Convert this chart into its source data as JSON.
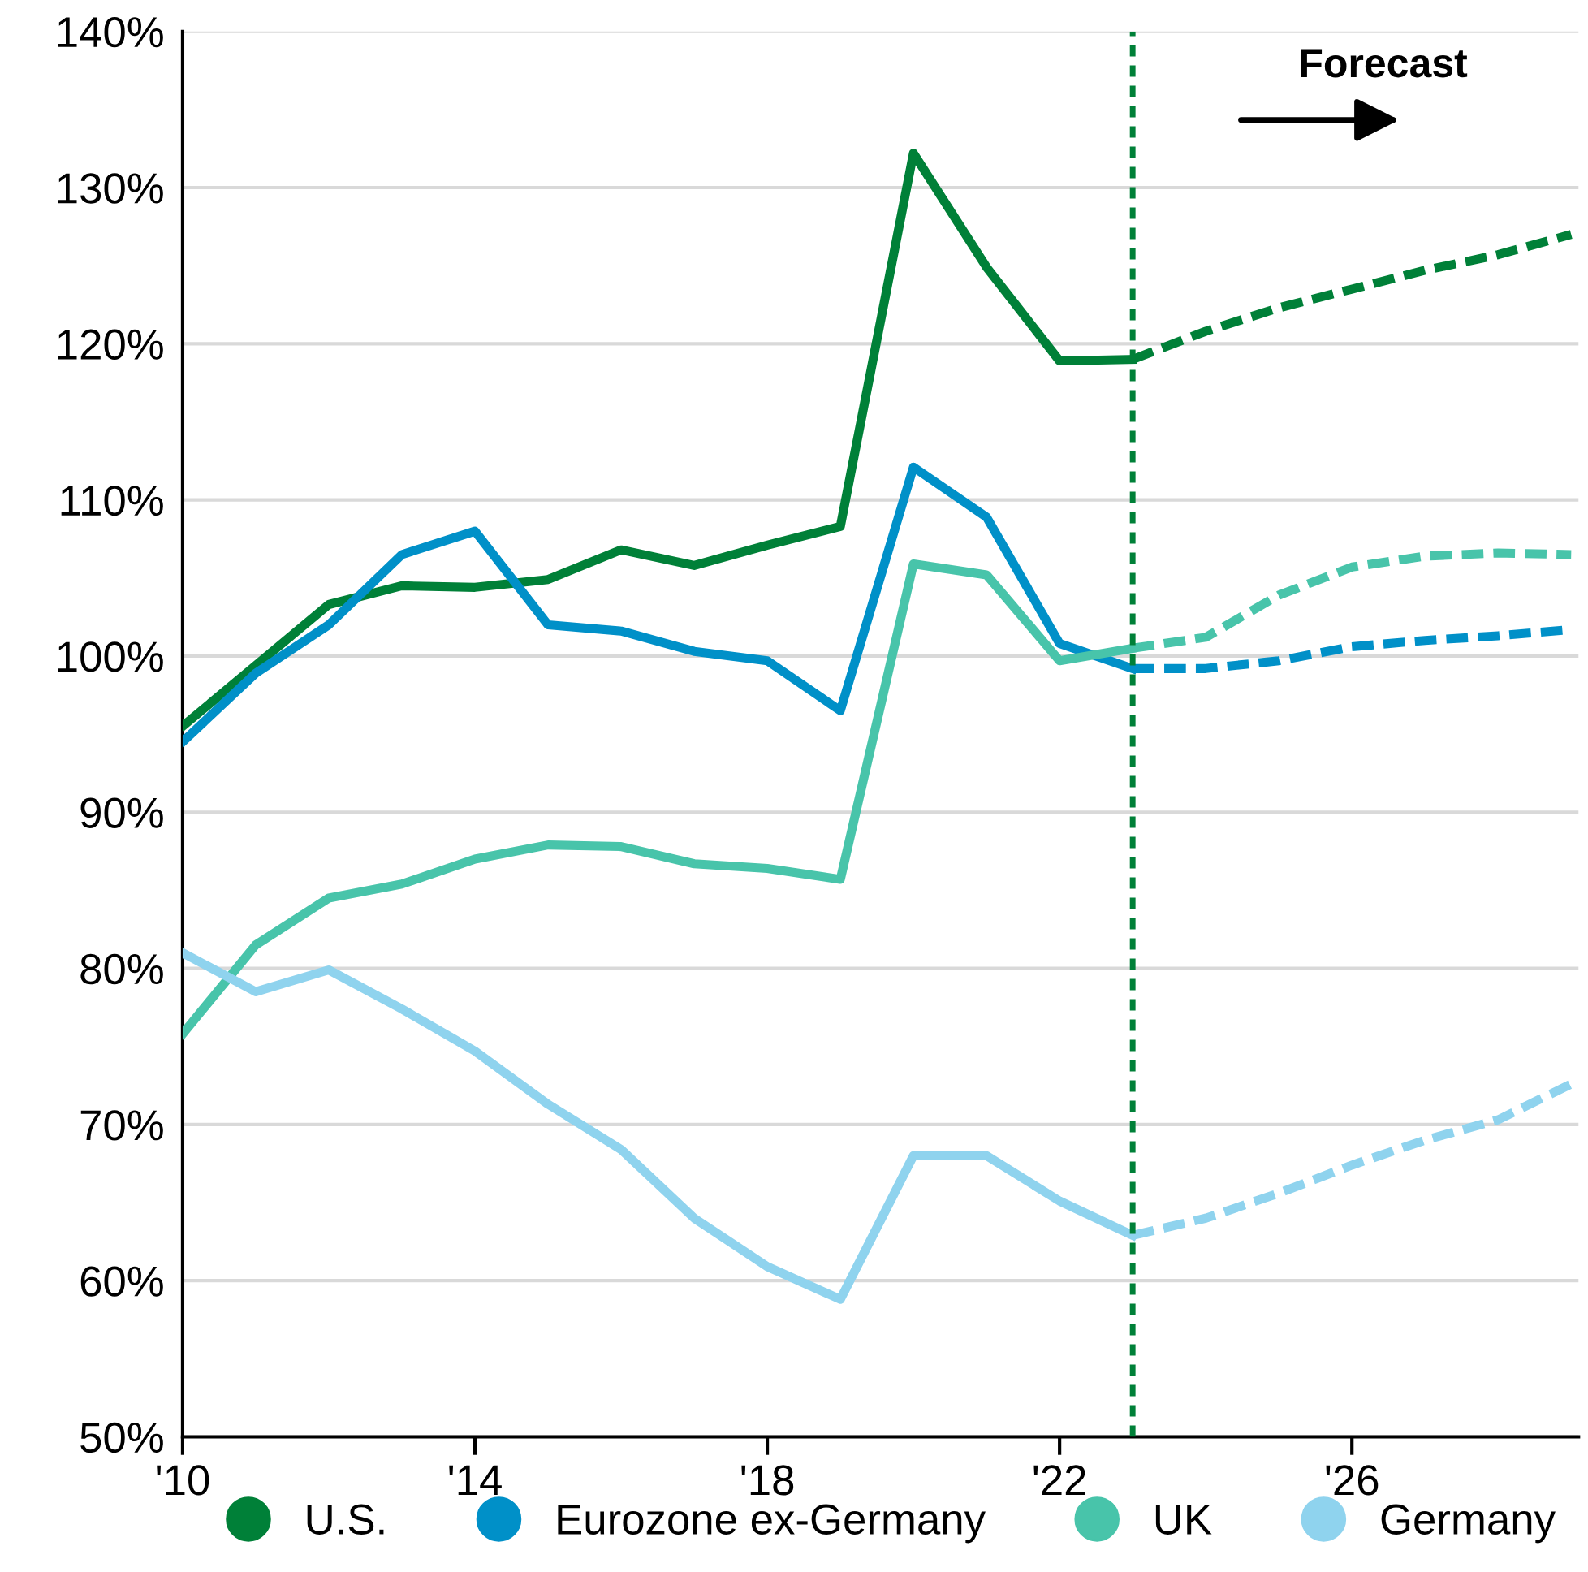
{
  "chart_data": {
    "type": "line",
    "x": [
      2010,
      2011,
      2012,
      2013,
      2014,
      2015,
      2016,
      2017,
      2018,
      2019,
      2020,
      2021,
      2022,
      2023
    ],
    "series": [
      {
        "name": "U.S.",
        "color": "#008038",
        "values": [
          95.5,
          99.4,
          103.3,
          104.5,
          104.4,
          104.9,
          106.8,
          105.8,
          107.1,
          108.3,
          132.2,
          124.9,
          118.9,
          119.0
        ]
      },
      {
        "name": "Eurozone ex-Germany",
        "color": "#0090c8",
        "values": [
          94.5,
          98.9,
          102.0,
          106.5,
          108.0,
          102.0,
          101.6,
          100.3,
          99.7,
          96.5,
          112.1,
          108.9,
          100.8,
          99.2
        ]
      },
      {
        "name": "UK",
        "color": "#48c4aa",
        "values": [
          75.8,
          81.5,
          84.5,
          85.4,
          87.0,
          87.9,
          87.8,
          86.7,
          86.4,
          85.7,
          105.9,
          105.2,
          99.7,
          100.5
        ]
      },
      {
        "name": "Germany",
        "color": "#8fd3ee",
        "values": [
          81.0,
          78.5,
          79.9,
          77.4,
          74.7,
          71.3,
          68.4,
          64.0,
          60.9,
          58.8,
          68.0,
          68.0,
          65.1,
          62.9
        ]
      },
      {
        "color": "#008038",
        "line_style": "dashed",
        "x": [
          2023,
          2024,
          2025,
          2026,
          2027,
          2028,
          2029
        ],
        "values": [
          119.0,
          120.8,
          122.3,
          123.5,
          124.7,
          125.7,
          127.0
        ]
      },
      {
        "color": "#0090c8",
        "line_style": "dashed",
        "x": [
          2023,
          2024,
          2025,
          2026,
          2027,
          2028,
          2029
        ],
        "values": [
          99.2,
          99.2,
          99.7,
          100.6,
          101.0,
          101.3,
          101.7
        ]
      },
      {
        "color": "#48c4aa",
        "line_style": "dashed",
        "x": [
          2023,
          2024,
          2025,
          2026,
          2027,
          2028,
          2029
        ],
        "values": [
          100.5,
          101.2,
          103.9,
          105.7,
          106.4,
          106.6,
          106.5
        ]
      },
      {
        "color": "#8fd3ee",
        "line_style": "dashed",
        "x": [
          2023,
          2024,
          2025,
          2026,
          2027,
          2028,
          2029
        ],
        "values": [
          62.9,
          64.0,
          65.6,
          67.4,
          69.0,
          70.3,
          72.6
        ]
      }
    ],
    "xlim": [
      2010,
      2029.1
    ],
    "xticks": [
      {
        "value": 2010,
        "label": "'10"
      },
      {
        "value": 2014,
        "label": "'14"
      },
      {
        "value": 2018,
        "label": "'18"
      },
      {
        "value": 2022,
        "label": "'22"
      },
      {
        "value": 2026,
        "label": "'26"
      }
    ],
    "ylim": [
      50,
      140
    ],
    "yticks": [
      {
        "value": 50,
        "label": "50%"
      },
      {
        "value": 60,
        "label": "60%"
      },
      {
        "value": 70,
        "label": "70%"
      },
      {
        "value": 80,
        "label": "80%"
      },
      {
        "value": 90,
        "label": "90%"
      },
      {
        "value": 100,
        "label": "100%"
      },
      {
        "value": 110,
        "label": "110%"
      },
      {
        "value": 120,
        "label": "120%"
      },
      {
        "value": 130,
        "label": "130%"
      },
      {
        "value": 140,
        "label": "140%"
      }
    ],
    "ref_lines": [
      {
        "axis": "x",
        "value": 2023,
        "color": "#008038",
        "line_style": "dotted"
      }
    ],
    "annotations": [
      "Forecast"
    ],
    "grid": "y",
    "legend": "bottom",
    "line_style": "solid",
    "marker": "none"
  }
}
